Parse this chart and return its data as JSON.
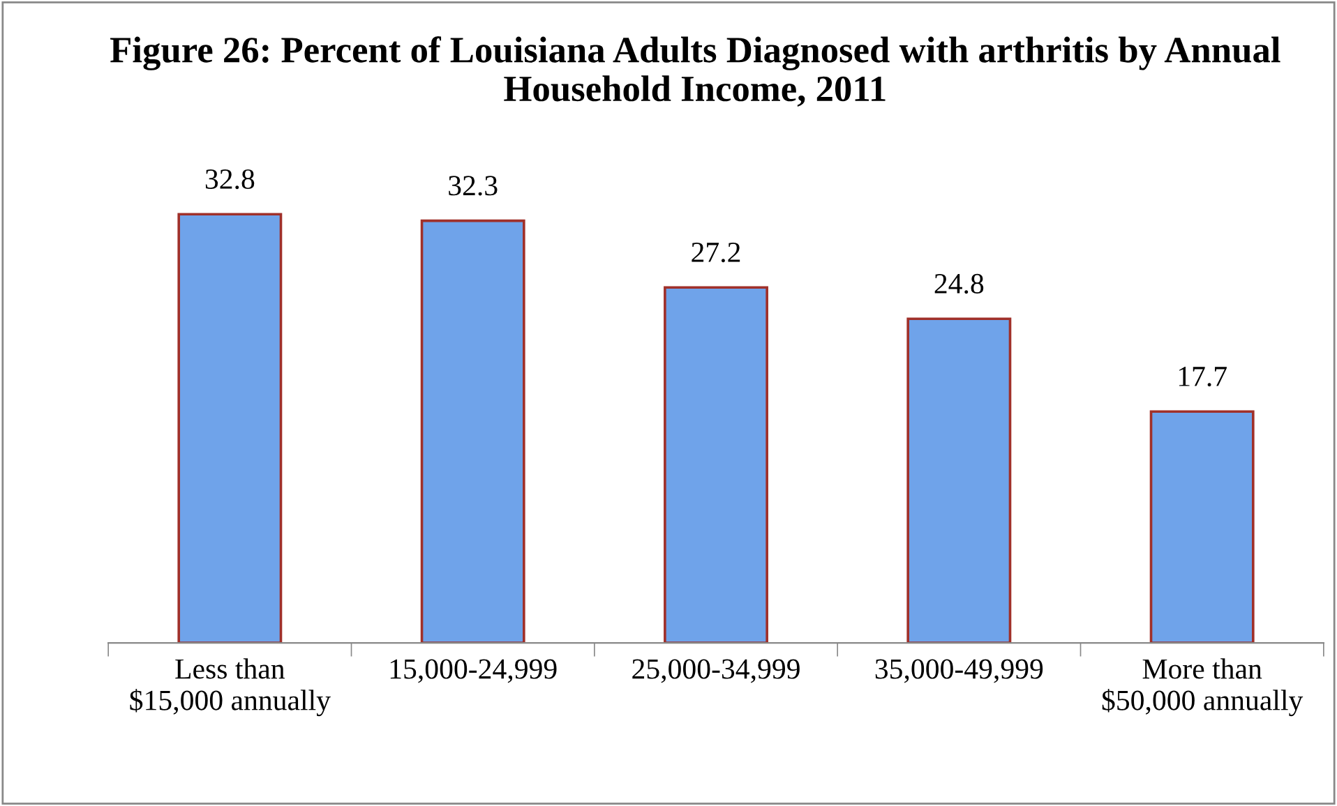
{
  "chart_data": {
    "type": "bar",
    "title": "Figure 26: Percent of Louisiana Adults Diagnosed with arthritis by Annual Household Income, 2011",
    "categories": [
      "Less than\n$15,000 annually",
      "15,000-24,999",
      "25,000-34,999",
      "35,000-49,999",
      "More than\n$50,000 annually"
    ],
    "values": [
      32.8,
      32.3,
      27.2,
      24.8,
      17.7
    ],
    "color": "#6fa3ea",
    "tick_labels": "x",
    "data_labels": true,
    "grid": false,
    "legend": false
  }
}
